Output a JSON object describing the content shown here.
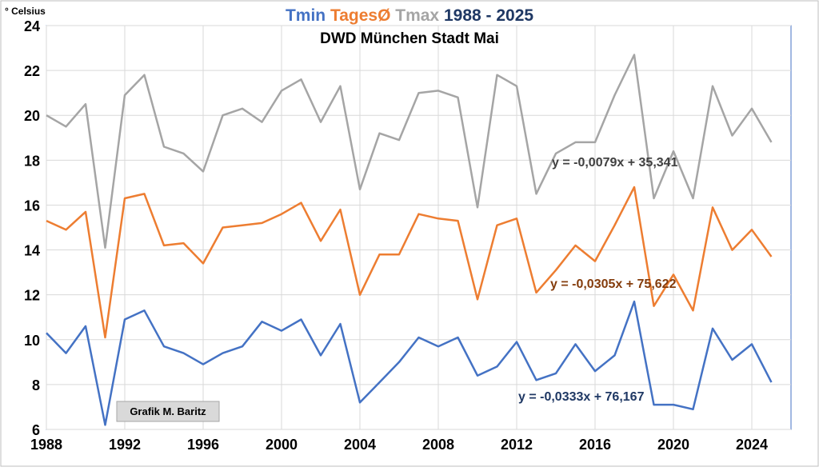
{
  "chart_data": {
    "type": "line",
    "title_parts": [
      {
        "text": "Tmin",
        "color": "#4472C4"
      },
      {
        "text": "TagesØ",
        "color": "#ED7D31"
      },
      {
        "text": "Tmax",
        "color": "#A5A5A5"
      },
      {
        "text": "1988 - 2025",
        "color": "#1F3864"
      }
    ],
    "subtitle": "DWD München Stadt Mai",
    "ylabel": "° Celsius",
    "credit": "Grafik M. Baritz",
    "ylim": [
      6,
      24
    ],
    "xlim": [
      1988,
      2026
    ],
    "y_ticks": [
      6,
      8,
      10,
      12,
      14,
      16,
      18,
      20,
      22,
      24
    ],
    "x_ticks": [
      1988,
      1992,
      1996,
      2000,
      2004,
      2008,
      2012,
      2016,
      2020,
      2024
    ],
    "x": [
      1988,
      1989,
      1990,
      1991,
      1992,
      1993,
      1994,
      1995,
      1996,
      1997,
      1998,
      1999,
      2000,
      2001,
      2002,
      2003,
      2004,
      2005,
      2006,
      2007,
      2008,
      2009,
      2010,
      2011,
      2012,
      2013,
      2014,
      2015,
      2016,
      2017,
      2018,
      2019,
      2020,
      2021,
      2022,
      2023,
      2024,
      2025
    ],
    "series": [
      {
        "name": "Tmax",
        "color": "#A5A5A5",
        "values": [
          20.0,
          19.5,
          20.5,
          14.1,
          20.9,
          21.8,
          18.6,
          18.3,
          17.5,
          20.0,
          20.3,
          19.7,
          21.1,
          21.6,
          19.7,
          21.3,
          16.7,
          19.2,
          18.9,
          21.0,
          21.1,
          20.8,
          15.9,
          21.8,
          21.3,
          16.5,
          18.3,
          18.8,
          18.8,
          20.9,
          22.7,
          16.3,
          18.4,
          16.3,
          21.3,
          19.1,
          20.3,
          18.8
        ],
        "trend": {
          "slope": -0.0079,
          "intercept": 35.341,
          "label": "y = -0,0079x + 35,341",
          "label_color": "#404040"
        }
      },
      {
        "name": "TagesØ",
        "color": "#ED7D31",
        "values": [
          15.3,
          14.9,
          15.7,
          10.1,
          16.3,
          16.5,
          14.2,
          14.3,
          13.4,
          15.0,
          15.1,
          15.2,
          15.6,
          16.1,
          14.4,
          15.8,
          12.0,
          13.8,
          13.8,
          15.6,
          15.4,
          15.3,
          11.8,
          15.1,
          15.4,
          12.1,
          13.1,
          14.2,
          13.5,
          15.1,
          16.8,
          11.5,
          12.9,
          11.3,
          15.9,
          14.0,
          14.9,
          13.7
        ],
        "trend": {
          "slope": -0.0305,
          "intercept": 75.622,
          "label": "y = -0,0305x + 75,622",
          "label_color": "#843C0C"
        }
      },
      {
        "name": "Tmin",
        "color": "#4472C4",
        "values": [
          10.3,
          9.4,
          10.6,
          6.2,
          10.9,
          11.3,
          9.7,
          9.4,
          8.9,
          9.4,
          9.7,
          10.8,
          10.4,
          10.9,
          9.3,
          10.7,
          7.2,
          8.1,
          9.0,
          10.1,
          9.7,
          10.1,
          8.4,
          8.8,
          9.9,
          8.2,
          8.5,
          9.8,
          8.6,
          9.3,
          11.7,
          7.1,
          7.1,
          6.9,
          10.5,
          9.1,
          9.8,
          8.1
        ],
        "trend": {
          "slope": -0.0333,
          "intercept": 76.167,
          "label": "y = -0,0333x + 76,167",
          "label_color": "#1F3864"
        }
      }
    ],
    "grid": {
      "horizontal": true,
      "vertical": true
    },
    "legend": "none"
  }
}
